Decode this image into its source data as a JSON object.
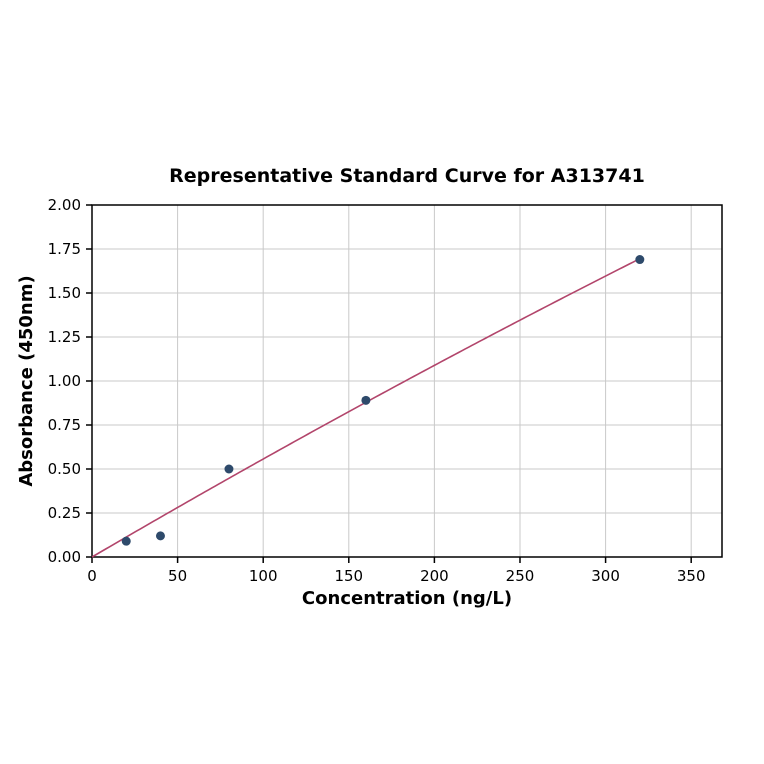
{
  "chart_data": {
    "type": "scatter",
    "title": "Representative Standard Curve for A313741",
    "xlabel": "Concentration (ng/L)",
    "ylabel": "Absorbance (450nm)",
    "x": [
      20,
      40,
      80,
      160,
      320
    ],
    "y": [
      0.09,
      0.12,
      0.5,
      0.89,
      1.69
    ],
    "fit": {
      "type": "quadratic",
      "c1": 0.00569,
      "c2": -1.23e-06,
      "x_start": 0,
      "x_end": 320
    },
    "xlim": [
      0,
      368
    ],
    "ylim": [
      0,
      2.0
    ],
    "xticks": [
      0,
      50,
      100,
      150,
      200,
      250,
      300,
      350
    ],
    "xtick_labels": [
      "0",
      "50",
      "100",
      "150",
      "200",
      "250",
      "300",
      "350"
    ],
    "yticks": [
      0,
      0.25,
      0.5,
      0.75,
      1.0,
      1.25,
      1.5,
      1.75,
      2.0
    ],
    "ytick_labels": [
      "0.00",
      "0.25",
      "0.50",
      "0.75",
      "1.00",
      "1.25",
      "1.50",
      "1.75",
      "2.00"
    ],
    "grid": true,
    "legend": "none",
    "point_color": "#2e4a6b",
    "line_color": "#b2456b",
    "grid_color": "#c9c9c9",
    "axis_color": "#000000",
    "background_color": "#ffffff"
  }
}
